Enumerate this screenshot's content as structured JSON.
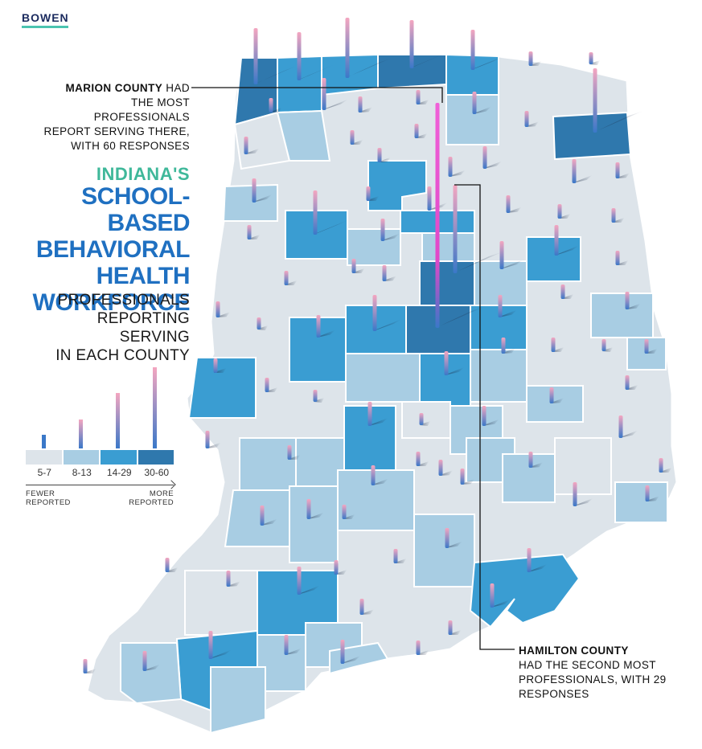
{
  "brand": "BOWEN",
  "kicker": "INDIANA'S",
  "title_lines": [
    "SCHOOL-BASED",
    "BEHAVIORAL",
    "HEALTH",
    "WORKFORCE"
  ],
  "subtitle_lines": [
    "PROFESSIONALS",
    "REPORTING SERVING",
    "IN EACH COUNTY"
  ],
  "callouts": {
    "marion": {
      "bold": "MARION COUNTY",
      "line1_rest": " HAD",
      "line2": "THE MOST PROFESSIONALS",
      "line3": "REPORT SERVING THERE,",
      "line4": "WITH 60 RESPONSES"
    },
    "hamilton": {
      "bold": "HAMILTON COUNTY",
      "line2": "HAD THE SECOND MOST",
      "line3": "PROFESSIONALS, WITH 29",
      "line4": "RESPONSES"
    }
  },
  "legend": {
    "bins": [
      {
        "label": "5-7",
        "color": "#dde4ea"
      },
      {
        "label": "8-13",
        "color": "#a8cde3"
      },
      {
        "label": "14-29",
        "color": "#3a9dd2"
      },
      {
        "label": "30-60",
        "color": "#2f78ad"
      }
    ],
    "low_line1": "FEWER",
    "low_line2": "REPORTED",
    "high_line1": "MORE",
    "high_line2": "REPORTED"
  },
  "colors": {
    "bin_1": "#dde4ea",
    "bin_2": "#a8cde3",
    "bin_3": "#3a9dd2",
    "bin_4": "#2f78ad",
    "spike_low": "#3a78c8",
    "spike_high": "#f4a6c0",
    "spike_marion": "#e048c8",
    "title_blue": "#1f70c1",
    "kicker_green": "#3fb89a"
  }
}
